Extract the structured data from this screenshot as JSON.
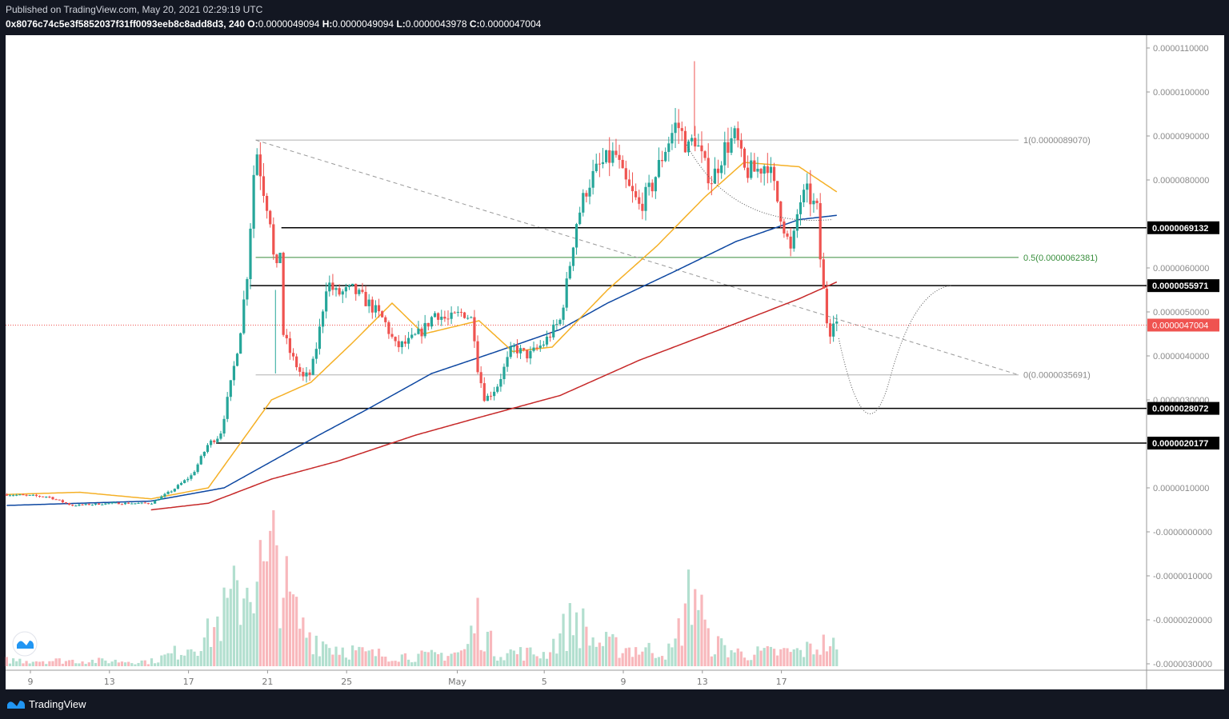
{
  "header": {
    "published": "Published on TradingView.com, May 20, 2021 02:29:19 UTC",
    "symbol": "0x8076c74c5e3f5852037f31ff0093eeb8c8add8d3, 240",
    "o_label": "O:",
    "o": "0.0000049094",
    "h_label": "H:",
    "h": "0.0000049094",
    "l_label": "L:",
    "l": "0.0000043978",
    "c_label": "C:",
    "c": "0.0000047004"
  },
  "footer": {
    "brand": "TradingView"
  },
  "colors": {
    "up": "#26a69a",
    "down": "#ef5350",
    "ma50": "#f5b026",
    "ma100": "#0d47a1",
    "ma200": "#c62828",
    "fib_mid": "#388e3c"
  },
  "chart_data": {
    "type": "candlestick",
    "unit_note": "prices in units of 1e-6",
    "x_ticks": [
      {
        "day": 0,
        "label": "9"
      },
      {
        "day": 4,
        "label": "13"
      },
      {
        "day": 8,
        "label": "17"
      },
      {
        "day": 12,
        "label": "21"
      },
      {
        "day": 16,
        "label": "25"
      },
      {
        "day": 21.6,
        "label": "May"
      },
      {
        "day": 26,
        "label": "5"
      },
      {
        "day": 30,
        "label": "9"
      },
      {
        "day": 34,
        "label": "13"
      },
      {
        "day": 38,
        "label": "17"
      }
    ],
    "y_ticks": [
      {
        "v": 11,
        "label": "0.0000110000"
      },
      {
        "v": 10,
        "label": "0.0000100000"
      },
      {
        "v": 9,
        "label": "0.0000090000"
      },
      {
        "v": 8,
        "label": "0.0000080000"
      },
      {
        "v": 6,
        "label": "0.0000060000"
      },
      {
        "v": 5,
        "label": "0.0000050000"
      },
      {
        "v": 4,
        "label": "0.0000040000"
      },
      {
        "v": 3,
        "label": "0.0000030000"
      },
      {
        "v": 1,
        "label": "0.0000010000"
      },
      {
        "v": 0,
        "label": "-0.0000000000"
      },
      {
        "v": -1,
        "label": "-0.0000010000"
      },
      {
        "v": -2,
        "label": "-0.0000020000"
      },
      {
        "v": -3,
        "label": "-0.0000030000"
      }
    ],
    "price_path": [
      [
        -1.2,
        0.85
      ],
      [
        0.9,
        0.8
      ],
      [
        2.1,
        0.6
      ],
      [
        4.1,
        0.65
      ],
      [
        6.1,
        0.65
      ],
      [
        7.2,
        0.95
      ],
      [
        8.2,
        1.3
      ],
      [
        9,
        2.0
      ],
      [
        9.6,
        2.2
      ],
      [
        10.2,
        3.5
      ],
      [
        10.6,
        4.5
      ],
      [
        11,
        6
      ],
      [
        11.2,
        7.5
      ],
      [
        11.4,
        8.8
      ],
      [
        11.8,
        7.8
      ],
      [
        12.2,
        7.0
      ],
      [
        12.4,
        5.5
      ],
      [
        12.6,
        6.8
      ],
      [
        12.8,
        4.5
      ],
      [
        13.2,
        4.0
      ],
      [
        13.8,
        3.5
      ],
      [
        14.2,
        3.6
      ],
      [
        14.6,
        4.5
      ],
      [
        15,
        5.7
      ],
      [
        15.5,
        5.4
      ],
      [
        16.3,
        5.5
      ],
      [
        17.1,
        5.2
      ],
      [
        17.9,
        4.8
      ],
      [
        18.5,
        4.2
      ],
      [
        19.1,
        4.3
      ],
      [
        19.9,
        4.6
      ],
      [
        20.5,
        5.0
      ],
      [
        21.1,
        4.8
      ],
      [
        21.9,
        5.0
      ],
      [
        22.4,
        4.8
      ],
      [
        22.6,
        3.8
      ],
      [
        23,
        3.0
      ],
      [
        23.6,
        3.3
      ],
      [
        24.4,
        4.2
      ],
      [
        25.2,
        4.0
      ],
      [
        26,
        4.3
      ],
      [
        26.8,
        4.8
      ],
      [
        27.2,
        5.8
      ],
      [
        27.6,
        7.0
      ],
      [
        28.2,
        7.9
      ],
      [
        28.8,
        8.3
      ],
      [
        29.6,
        8.6
      ],
      [
        30,
        8.0
      ],
      [
        30.8,
        7.4
      ],
      [
        31.4,
        7.8
      ],
      [
        32.1,
        8.7
      ],
      [
        32.7,
        9.3
      ],
      [
        33.3,
        8.7
      ],
      [
        33.6,
        9.0
      ],
      [
        34.1,
        8.3
      ],
      [
        34.5,
        8.0
      ],
      [
        35.1,
        8.7
      ],
      [
        35.7,
        9.0
      ],
      [
        36.1,
        8.2
      ],
      [
        36.7,
        8.2
      ],
      [
        37.3,
        8.4
      ],
      [
        37.7,
        7.7
      ],
      [
        38.1,
        7.0
      ],
      [
        38.5,
        6.3
      ],
      [
        38.9,
        7.5
      ],
      [
        39.3,
        7.7
      ],
      [
        39.8,
        7.3
      ],
      [
        40,
        6.0
      ],
      [
        40.2,
        5.2
      ],
      [
        40.4,
        4.4
      ],
      [
        40.6,
        4.9
      ],
      [
        40.9,
        4.7
      ]
    ],
    "spikes": [
      {
        "day": 33.6,
        "high": 10.7
      },
      {
        "day": 12.4,
        "low": 3.6
      }
    ],
    "ma50": [
      [
        -1.2,
        0.85
      ],
      [
        2.5,
        0.9
      ],
      [
        6.1,
        0.75
      ],
      [
        9,
        1.0
      ],
      [
        10.6,
        2.0
      ],
      [
        12.2,
        3.0
      ],
      [
        14.2,
        3.4
      ],
      [
        16.3,
        4.3
      ],
      [
        18.3,
        5.2
      ],
      [
        19.9,
        4.5
      ],
      [
        22.7,
        4.8
      ],
      [
        24.4,
        4.1
      ],
      [
        26.4,
        4.2
      ],
      [
        29.2,
        5.5
      ],
      [
        31.7,
        6.5
      ],
      [
        34.1,
        7.6
      ],
      [
        36.1,
        8.4
      ],
      [
        38.9,
        8.3
      ],
      [
        40.9,
        7.7
      ]
    ],
    "ma100": [
      [
        -1.2,
        0.6
      ],
      [
        6.1,
        0.7
      ],
      [
        9.8,
        1.0
      ],
      [
        12.2,
        1.6
      ],
      [
        14.6,
        2.2
      ],
      [
        17.1,
        2.8
      ],
      [
        20.3,
        3.6
      ],
      [
        23.6,
        4.1
      ],
      [
        26.8,
        4.6
      ],
      [
        29.2,
        5.2
      ],
      [
        32.5,
        5.9
      ],
      [
        35.7,
        6.6
      ],
      [
        38.9,
        7.1
      ],
      [
        40.9,
        7.2
      ]
    ],
    "ma200": [
      [
        6.1,
        0.5
      ],
      [
        9,
        0.65
      ],
      [
        12.2,
        1.2
      ],
      [
        15.5,
        1.6
      ],
      [
        19.5,
        2.2
      ],
      [
        22.7,
        2.6
      ],
      [
        26.8,
        3.1
      ],
      [
        30.8,
        3.9
      ],
      [
        34.9,
        4.6
      ],
      [
        38.9,
        5.3
      ],
      [
        40.9,
        5.7
      ]
    ],
    "volume_path": [
      [
        -1.2,
        5
      ],
      [
        6.1,
        4
      ],
      [
        7.2,
        10
      ],
      [
        9,
        25
      ],
      [
        10.6,
        60
      ],
      [
        11.4,
        80
      ],
      [
        12,
        70
      ],
      [
        12.4,
        100
      ],
      [
        13,
        55
      ],
      [
        13.8,
        30
      ],
      [
        15,
        18
      ],
      [
        17,
        10
      ],
      [
        20,
        8
      ],
      [
        22,
        12
      ],
      [
        22.6,
        40
      ],
      [
        23.5,
        12
      ],
      [
        26,
        10
      ],
      [
        27.6,
        40
      ],
      [
        28.5,
        20
      ],
      [
        30,
        15
      ],
      [
        32.5,
        12
      ],
      [
        33.6,
        70
      ],
      [
        34.3,
        20
      ],
      [
        36,
        10
      ],
      [
        39,
        12
      ],
      [
        40.5,
        20
      ],
      [
        40.9,
        8
      ]
    ],
    "levels": [
      {
        "v": 6.9132,
        "label": "0.0000069132",
        "from_day": 12.7
      },
      {
        "v": 5.5971,
        "label": "0.0000055971",
        "from_day": 11.1
      },
      {
        "v": 2.8072,
        "label": "0.0000028072",
        "from_day": 11.8
      },
      {
        "v": 2.0177,
        "label": "0.0000020177",
        "from_day": 9.4
      }
    ],
    "last_price": {
      "v": 4.7004,
      "label": "0.0000047004"
    },
    "fib": [
      {
        "v": 8.907,
        "label": "1(0.0000089070)"
      },
      {
        "v": 6.2381,
        "label": "0.5(0.0000062381)"
      },
      {
        "v": 3.5691,
        "label": "0(0.0000035691)"
      }
    ]
  }
}
